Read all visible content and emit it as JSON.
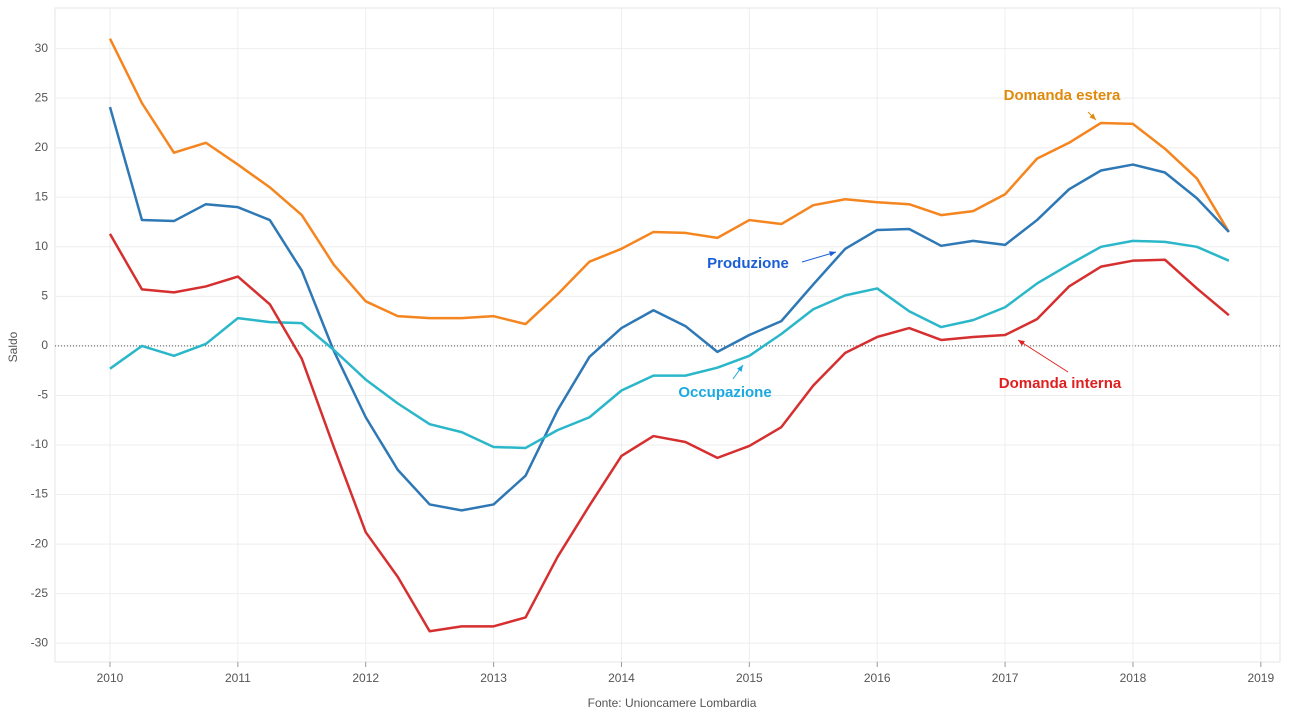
{
  "chart_data": {
    "type": "line",
    "y_label": "Saldo",
    "source": "Fonte: Unioncamere Lombardia",
    "x": [
      2010,
      2010.25,
      2010.5,
      2010.75,
      2011,
      2011.25,
      2011.5,
      2011.75,
      2012,
      2012.25,
      2012.5,
      2012.75,
      2013,
      2013.25,
      2013.5,
      2013.75,
      2014,
      2014.25,
      2014.5,
      2014.75,
      2015,
      2015.25,
      2015.5,
      2015.75,
      2016,
      2016.25,
      2016.5,
      2016.75,
      2017,
      2017.25,
      2017.5,
      2017.75,
      2018,
      2018.25,
      2018.5,
      2018.75
    ],
    "xlim": [
      2009.57,
      2019.15
    ],
    "xticks": [
      2010,
      2011,
      2012,
      2013,
      2014,
      2015,
      2016,
      2017,
      2018,
      2019
    ],
    "ylim": [
      -31.9,
      34.1
    ],
    "yticks": [
      -30,
      -25,
      -20,
      -15,
      -10,
      -5,
      0,
      5,
      10,
      15,
      20,
      25,
      30
    ],
    "grid": true,
    "series": [
      {
        "name": "Domanda estera",
        "color": "#f5851f",
        "label_color": "#e08a0b",
        "values": [
          31,
          24.5,
          19.5,
          20.5,
          18.3,
          16,
          13.2,
          8.2,
          4.5,
          3,
          2.8,
          2.8,
          3,
          2.2,
          5.2,
          8.5,
          9.8,
          11.5,
          11.4,
          10.9,
          12.7,
          12.3,
          14.2,
          14.8,
          14.5,
          14.3,
          13.2,
          13.6,
          15.3,
          18.9,
          20.5,
          22.5,
          22.4,
          19.9,
          16.9,
          11.5
        ]
      },
      {
        "name": "Produzione",
        "color": "#2e78b5",
        "label_color": "#1a5fd6",
        "values": [
          24.1,
          12.7,
          12.6,
          14.3,
          14,
          12.7,
          7.6,
          -0.5,
          -7.2,
          -12.5,
          -16,
          -16.6,
          -16,
          -13.1,
          -6.5,
          -1.1,
          1.8,
          3.6,
          2,
          -0.6,
          1.1,
          2.5,
          6.2,
          9.8,
          11.7,
          11.8,
          10.1,
          10.6,
          10.2,
          12.7,
          15.8,
          17.7,
          18.3,
          17.5,
          14.9,
          11.5
        ]
      },
      {
        "name": "Occupazione",
        "color": "#2ab7c9",
        "label_color": "#1aa9e0",
        "values": [
          -2.3,
          0,
          -1,
          0.2,
          2.8,
          2.4,
          2.3,
          -0.4,
          -3.4,
          -5.8,
          -7.9,
          -8.7,
          -10.2,
          -10.3,
          -8.5,
          -7.2,
          -4.5,
          -3,
          -3,
          -2.2,
          -1,
          1.2,
          3.7,
          5.1,
          5.8,
          3.5,
          1.9,
          2.6,
          3.9,
          6.3,
          8.2,
          10,
          10.6,
          10.5,
          10,
          8.6
        ]
      },
      {
        "name": "Domanda interna",
        "color": "#d62f2f",
        "label_color": "#e01f1f",
        "values": [
          11.3,
          5.7,
          5.4,
          6,
          7,
          4.2,
          -1.3,
          -10.2,
          -18.8,
          -23.3,
          -28.8,
          -28.3,
          -28.3,
          -27.4,
          -21.3,
          -16.1,
          -11.1,
          -9.1,
          -9.7,
          -11.3,
          -10.1,
          -8.2,
          -4,
          -0.7,
          0.9,
          1.8,
          0.6,
          0.9,
          1.1,
          2.7,
          6,
          8,
          8.6,
          8.7,
          5.8,
          3.1
        ]
      }
    ]
  }
}
